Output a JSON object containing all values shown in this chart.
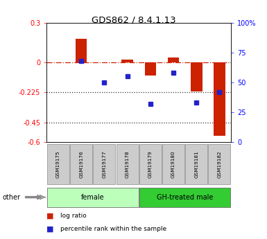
{
  "title": "GDS862 / 8.4.1.13",
  "samples": [
    "GSM19175",
    "GSM19176",
    "GSM19177",
    "GSM19178",
    "GSM19179",
    "GSM19180",
    "GSM19181",
    "GSM19182"
  ],
  "log_ratio": [
    0.0,
    0.18,
    0.0,
    0.02,
    -0.1,
    0.04,
    -0.22,
    -0.55
  ],
  "percentile_rank": [
    null,
    68,
    50,
    55,
    32,
    58,
    33,
    42
  ],
  "groups": [
    {
      "label": "female",
      "start": 0,
      "end": 4,
      "color": "#bbffbb"
    },
    {
      "label": "GH-treated male",
      "start": 4,
      "end": 8,
      "color": "#33cc33"
    }
  ],
  "ylim_left": [
    -0.6,
    0.3
  ],
  "ylim_right": [
    0,
    100
  ],
  "yticks_left": [
    0.3,
    0,
    -0.225,
    -0.45,
    -0.6
  ],
  "yticks_right": [
    100,
    75,
    50,
    25,
    0
  ],
  "bar_color": "#cc2200",
  "square_color": "#2222cc",
  "dashed_color": "#cc2200",
  "dotted_color": "#333333",
  "legend_items": [
    "log ratio",
    "percentile rank within the sample"
  ]
}
